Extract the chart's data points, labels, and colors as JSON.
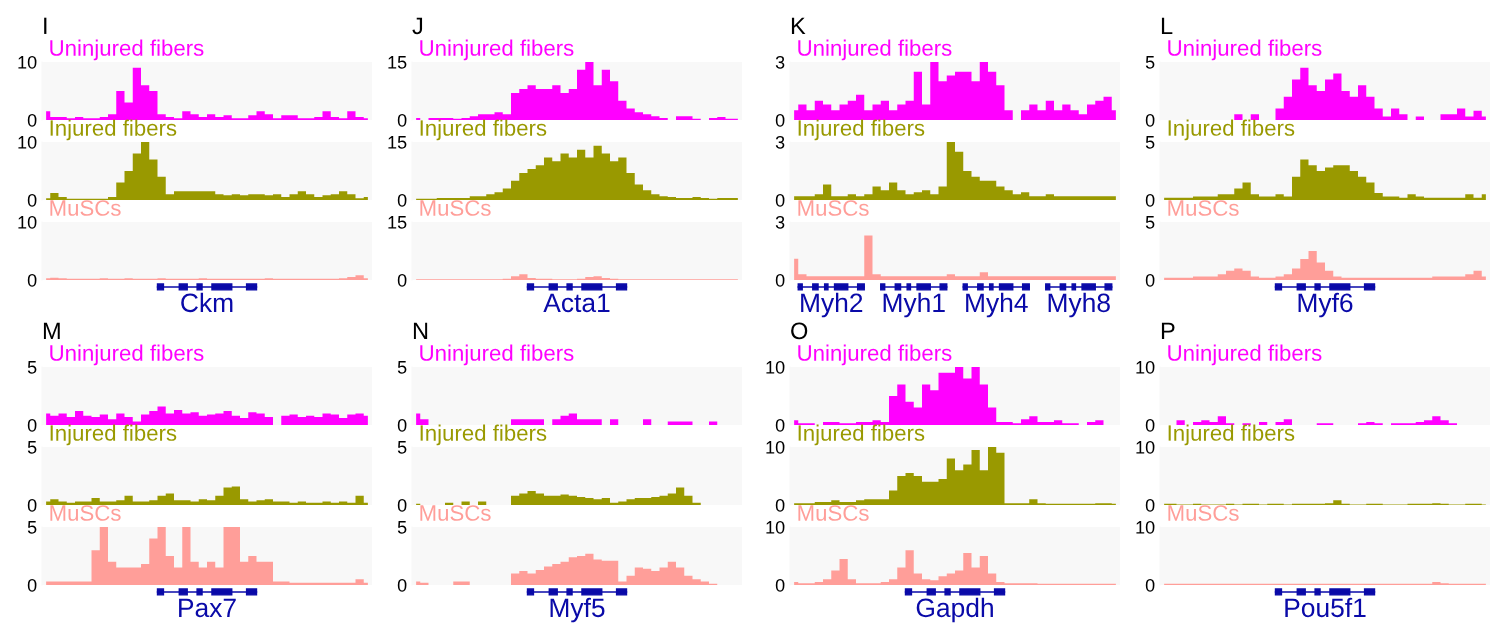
{
  "chart_data": [
    {
      "type": "area",
      "title": "I",
      "categories": [
        null,
        null,
        null,
        null,
        null,
        null,
        null,
        null,
        null,
        null,
        null,
        null,
        null,
        null,
        null,
        null,
        null,
        null,
        null,
        null,
        null,
        null,
        null,
        null,
        null,
        null,
        null,
        null,
        null,
        null,
        null,
        null,
        null,
        null,
        null,
        null,
        null,
        null,
        null,
        null
      ],
      "ylim": [
        0,
        10
      ],
      "yticks": [
        0,
        10
      ],
      "tick_labels": "y",
      "series": [
        {
          "name": "Uninjured fibers",
          "color": "#ff00ff",
          "values": [
            1.5,
            0.5,
            0.5,
            0.3,
            0.5,
            0.3,
            0.3,
            0.5,
            1,
            5,
            3,
            9,
            6,
            5,
            1,
            0.5,
            0.3,
            1.5,
            1,
            0.5,
            1,
            0.5,
            0.8,
            0.3,
            0.3,
            0.8,
            1.5,
            1,
            0.3,
            0.8,
            0.8,
            0.3,
            0.3,
            0.5,
            1.5,
            0.5,
            0.3,
            1.5,
            0.5,
            0.3
          ]
        }
      ]
    },
    {
      "type": "area",
      "categories": [
        null,
        null,
        null,
        null,
        null,
        null,
        null,
        null,
        null,
        null,
        null,
        null,
        null,
        null,
        null,
        null,
        null,
        null,
        null,
        null,
        null,
        null,
        null,
        null,
        null,
        null,
        null,
        null,
        null,
        null,
        null,
        null,
        null,
        null,
        null,
        null,
        null,
        null,
        null,
        null
      ],
      "ylim": [
        0,
        10
      ],
      "yticks": [
        0,
        10
      ],
      "tick_labels": "y",
      "series": [
        {
          "name": "Injured fibers",
          "color": "#999900",
          "values": [
            0.3,
            1.2,
            0.5,
            0.2,
            0.2,
            0.2,
            0.2,
            0.2,
            0.5,
            3,
            5,
            8,
            10,
            7,
            4,
            1,
            1.5,
            1.5,
            1.5,
            1.5,
            1.5,
            1,
            0.8,
            1,
            0.8,
            1,
            1,
            0.8,
            1,
            0.5,
            1,
            1.5,
            1,
            0.5,
            0.8,
            1,
            1.5,
            1,
            0.3,
            0.5
          ]
        }
      ]
    },
    {
      "type": "area",
      "categories": [
        null,
        null,
        null,
        null,
        null,
        null,
        null,
        null,
        null,
        null,
        null,
        null,
        null,
        null,
        null,
        null,
        null,
        null,
        null,
        null,
        null,
        null,
        null,
        null,
        null,
        null,
        null,
        null,
        null,
        null,
        null,
        null,
        null,
        null,
        null,
        null,
        null,
        null,
        null,
        null
      ],
      "ylim": [
        0,
        10
      ],
      "yticks": [
        0,
        10
      ],
      "tick_labels": "y",
      "annotations": [
        "Ckm"
      ],
      "series": [
        {
          "name": "MuSCs",
          "color": "#ff9e99",
          "values": [
            0.3,
            0.4,
            0.3,
            0.2,
            0.2,
            0.2,
            0.2,
            0.3,
            0.2,
            0.2,
            0.3,
            0.2,
            0.2,
            0.2,
            0.3,
            0.2,
            0.2,
            0.2,
            0.2,
            0.3,
            0.2,
            0.2,
            0.2,
            0.2,
            0.2,
            0.2,
            0.2,
            0.3,
            0.2,
            0.2,
            0.2,
            0.2,
            0.2,
            0.2,
            0.2,
            0.2,
            0.3,
            0.5,
            0.8,
            0.3
          ]
        }
      ]
    },
    {
      "type": "area",
      "title": "J",
      "categories": [
        null,
        null,
        null,
        null,
        null,
        null,
        null,
        null,
        null,
        null,
        null,
        null,
        null,
        null,
        null,
        null,
        null,
        null,
        null,
        null,
        null,
        null,
        null,
        null,
        null,
        null,
        null,
        null,
        null,
        null,
        null,
        null,
        null,
        null,
        null,
        null,
        null,
        null,
        null,
        null
      ],
      "ylim": [
        0,
        15
      ],
      "yticks": [
        0,
        15
      ],
      "tick_labels": "y",
      "series": [
        {
          "name": "Uninjured fibers",
          "color": "#ff00ff",
          "values": [
            0.5,
            0,
            0.5,
            0.5,
            0.5,
            0.3,
            0.5,
            1,
            1.5,
            1.5,
            2,
            1.5,
            7,
            8,
            9,
            8,
            8,
            9,
            7,
            8,
            13,
            15,
            9,
            13,
            10,
            5,
            3,
            2,
            1.5,
            1,
            0.5,
            0,
            1,
            1,
            0.3,
            0,
            0.5,
            0.8,
            0.3,
            0.3
          ]
        }
      ]
    },
    {
      "type": "area",
      "categories": [
        null,
        null,
        null,
        null,
        null,
        null,
        null,
        null,
        null,
        null,
        null,
        null,
        null,
        null,
        null,
        null,
        null,
        null,
        null,
        null,
        null,
        null,
        null,
        null,
        null,
        null,
        null,
        null,
        null,
        null,
        null,
        null,
        null,
        null,
        null,
        null,
        null,
        null,
        null,
        null
      ],
      "ylim": [
        0,
        15
      ],
      "yticks": [
        0,
        15
      ],
      "tick_labels": "y",
      "series": [
        {
          "name": "Injured fibers",
          "color": "#999900",
          "values": [
            0.3,
            0.3,
            0.3,
            0.5,
            0.5,
            0.5,
            0.5,
            1,
            1,
            1.5,
            2,
            3,
            5,
            7,
            8,
            9,
            11,
            10,
            12,
            11,
            13,
            11,
            14,
            12,
            10,
            11,
            7,
            4,
            2.5,
            1.5,
            1,
            0.8,
            0.5,
            0.5,
            0.8,
            0.5,
            0.3,
            0.5,
            0.5,
            0.5
          ]
        }
      ]
    },
    {
      "type": "area",
      "categories": [
        null,
        null,
        null,
        null,
        null,
        null,
        null,
        null,
        null,
        null,
        null,
        null,
        null,
        null,
        null,
        null,
        null,
        null,
        null,
        null,
        null,
        null,
        null,
        null,
        null,
        null,
        null,
        null,
        null,
        null,
        null,
        null,
        null,
        null,
        null,
        null,
        null,
        null,
        null,
        null
      ],
      "ylim": [
        0,
        15
      ],
      "yticks": [
        0,
        15
      ],
      "tick_labels": "y",
      "annotations": [
        "Acta1"
      ],
      "series": [
        {
          "name": "MuSCs",
          "color": "#ff9e99",
          "values": [
            0.2,
            0.2,
            0.2,
            0.2,
            0.2,
            0.2,
            0.2,
            0.2,
            0.2,
            0.2,
            0.2,
            0.3,
            1,
            1.5,
            0.5,
            0.3,
            0.3,
            0.2,
            0.2,
            0.2,
            0.3,
            0.8,
            1,
            0.5,
            0.3,
            0.2,
            0.2,
            0.2,
            0.2,
            0.2,
            0.2,
            0.2,
            0.2,
            0.2,
            0.2,
            0.2,
            0.2,
            0.2,
            0.2,
            0.2
          ]
        }
      ]
    },
    {
      "type": "area",
      "title": "K",
      "categories": [
        null,
        null,
        null,
        null,
        null,
        null,
        null,
        null,
        null,
        null,
        null,
        null,
        null,
        null,
        null,
        null,
        null,
        null,
        null,
        null,
        null,
        null,
        null,
        null,
        null,
        null,
        null,
        null,
        null,
        null,
        null,
        null,
        null,
        null,
        null,
        null,
        null,
        null,
        null,
        null
      ],
      "ylim": [
        0,
        3
      ],
      "yticks": [
        0,
        3
      ],
      "tick_labels": "y",
      "series": [
        {
          "name": "Uninjured fibers",
          "color": "#ff00ff",
          "values": [
            0.5,
            0.8,
            0.5,
            1,
            0.8,
            0.5,
            0.8,
            1,
            1.3,
            0.5,
            0.8,
            1,
            0.5,
            0.8,
            1,
            2.5,
            0.8,
            3,
            2,
            2.3,
            2.5,
            2.5,
            2,
            3,
            2.5,
            1.8,
            0.5,
            0,
            0.5,
            0.8,
            0.5,
            1,
            0.5,
            0.8,
            0.5,
            0.3,
            0.8,
            1,
            1.2,
            0.5
          ]
        }
      ]
    },
    {
      "type": "area",
      "categories": [
        null,
        null,
        null,
        null,
        null,
        null,
        null,
        null,
        null,
        null,
        null,
        null,
        null,
        null,
        null,
        null,
        null,
        null,
        null,
        null,
        null,
        null,
        null,
        null,
        null,
        null,
        null,
        null,
        null,
        null,
        null,
        null,
        null,
        null,
        null,
        null,
        null,
        null,
        null,
        null
      ],
      "ylim": [
        0,
        3
      ],
      "yticks": [
        0,
        3
      ],
      "tick_labels": "y",
      "series": [
        {
          "name": "Injured fibers",
          "color": "#999900",
          "values": [
            0.2,
            0.2,
            0.2,
            0.3,
            0.8,
            0.2,
            0.2,
            0.3,
            0.2,
            0.3,
            0.7,
            0.5,
            0.9,
            0.5,
            0.3,
            0.4,
            0.5,
            0.3,
            0.7,
            3,
            2.5,
            1.5,
            1.2,
            1,
            1,
            0.7,
            0.5,
            0.3,
            0.4,
            0.2,
            0.2,
            0.3,
            0.2,
            0.2,
            0.2,
            0.2,
            0.2,
            0.2,
            0.2,
            0.2
          ]
        }
      ]
    },
    {
      "type": "area",
      "categories": [
        null,
        null,
        null,
        null,
        null,
        null,
        null,
        null,
        null,
        null,
        null,
        null,
        null,
        null,
        null,
        null,
        null,
        null,
        null,
        null,
        null,
        null,
        null,
        null,
        null,
        null,
        null,
        null,
        null,
        null,
        null,
        null,
        null,
        null,
        null,
        null,
        null,
        null,
        null,
        null
      ],
      "ylim": [
        0,
        3
      ],
      "yticks": [
        0,
        3
      ],
      "tick_labels": "y",
      "annotations": [
        "Myh2",
        "Myh1",
        "Myh4",
        "Myh8"
      ],
      "series": [
        {
          "name": "MuSCs",
          "color": "#ff9e99",
          "values": [
            1.1,
            0.3,
            0.2,
            0.2,
            0.2,
            0.2,
            0.2,
            0.2,
            0.2,
            2.3,
            0.3,
            0.2,
            0.2,
            0.2,
            0.2,
            0.2,
            0.2,
            0.2,
            0.2,
            0.3,
            0.2,
            0.2,
            0.2,
            0.4,
            0.2,
            0.2,
            0.2,
            0.2,
            0.2,
            0.2,
            0.2,
            0.2,
            0.2,
            0.2,
            0.2,
            0.2,
            0.2,
            0.2,
            0.2,
            0.2
          ]
        }
      ]
    },
    {
      "type": "area",
      "title": "L",
      "categories": [
        null,
        null,
        null,
        null,
        null,
        null,
        null,
        null,
        null,
        null,
        null,
        null,
        null,
        null,
        null,
        null,
        null,
        null,
        null,
        null,
        null,
        null,
        null,
        null,
        null,
        null,
        null,
        null,
        null,
        null,
        null,
        null,
        null,
        null,
        null,
        null,
        null,
        null,
        null,
        null
      ],
      "ylim": [
        0,
        5
      ],
      "yticks": [
        0,
        5
      ],
      "tick_labels": "y",
      "series": [
        {
          "name": "Uninjured fibers",
          "color": "#ff00ff",
          "values": [
            0,
            0,
            0,
            0,
            0,
            0,
            0,
            0,
            0,
            0.5,
            0,
            0.5,
            0,
            0,
            1,
            2,
            3.5,
            4.5,
            3,
            2.5,
            3.5,
            4,
            2.5,
            2,
            3,
            2,
            1,
            0.3,
            1,
            0.5,
            0,
            0.3,
            0,
            0,
            0.5,
            0.5,
            1,
            0.3,
            0.8,
            0.3
          ]
        }
      ]
    },
    {
      "type": "area",
      "categories": [
        null,
        null,
        null,
        null,
        null,
        null,
        null,
        null,
        null,
        null,
        null,
        null,
        null,
        null,
        null,
        null,
        null,
        null,
        null,
        null,
        null,
        null,
        null,
        null,
        null,
        null,
        null,
        null,
        null,
        null,
        null,
        null,
        null,
        null,
        null,
        null,
        null,
        null,
        null,
        null
      ],
      "ylim": [
        0,
        5
      ],
      "yticks": [
        0,
        5
      ],
      "tick_labels": "y",
      "series": [
        {
          "name": "Injured fibers",
          "color": "#999900",
          "values": [
            0.2,
            0.2,
            0.2,
            0.2,
            0.3,
            0.3,
            0.3,
            0.5,
            0.5,
            1,
            1.5,
            0.5,
            0.3,
            0.3,
            0.5,
            0.3,
            2,
            3.5,
            3,
            2.5,
            2.8,
            3,
            3,
            2.5,
            2,
            1.5,
            0.6,
            0.3,
            0.3,
            0.2,
            0.5,
            0.3,
            0.2,
            0.2,
            0.2,
            0.2,
            0.2,
            0.5,
            0.2,
            0.5
          ]
        }
      ]
    },
    {
      "type": "area",
      "categories": [
        null,
        null,
        null,
        null,
        null,
        null,
        null,
        null,
        null,
        null,
        null,
        null,
        null,
        null,
        null,
        null,
        null,
        null,
        null,
        null,
        null,
        null,
        null,
        null,
        null,
        null,
        null,
        null,
        null,
        null,
        null,
        null,
        null,
        null,
        null,
        null,
        null,
        null,
        null,
        null
      ],
      "ylim": [
        0,
        5
      ],
      "yticks": [
        0,
        5
      ],
      "tick_labels": "y",
      "annotations": [
        "Myf6"
      ],
      "series": [
        {
          "name": "MuSCs",
          "color": "#ff9e99",
          "values": [
            0.2,
            0.2,
            0.2,
            0.2,
            0.3,
            0.3,
            0.3,
            0.5,
            0.8,
            1,
            0.8,
            0.3,
            0.2,
            0.2,
            0.3,
            0.5,
            1,
            1.8,
            2.5,
            1.5,
            0.8,
            0.3,
            0.2,
            0.2,
            0.2,
            0.2,
            0.2,
            0.2,
            0.2,
            0.2,
            0.2,
            0.2,
            0.2,
            0.3,
            0.3,
            0.3,
            0.3,
            0.5,
            0.8,
            0.3
          ]
        }
      ]
    },
    {
      "type": "area",
      "title": "M",
      "categories": [
        null,
        null,
        null,
        null,
        null,
        null,
        null,
        null,
        null,
        null,
        null,
        null,
        null,
        null,
        null,
        null,
        null,
        null,
        null,
        null,
        null,
        null,
        null,
        null,
        null,
        null,
        null,
        null,
        null,
        null,
        null,
        null,
        null,
        null,
        null,
        null,
        null,
        null,
        null,
        null
      ],
      "ylim": [
        0,
        5
      ],
      "yticks": [
        0,
        5
      ],
      "tick_labels": "y",
      "series": [
        {
          "name": "Uninjured fibers",
          "color": "#ff00ff",
          "values": [
            1,
            0.8,
            1,
            0.7,
            1.2,
            0.8,
            0.7,
            0.9,
            0.5,
            1,
            0.7,
            0.3,
            0.9,
            1.2,
            1.6,
            1,
            1.3,
            1,
            1.1,
            0.8,
            0.9,
            1,
            1.2,
            0.8,
            0.6,
            1.1,
            1,
            0.7,
            0,
            0.8,
            0.9,
            0.7,
            0.8,
            0.7,
            1,
            0.9,
            0.6,
            0.9,
            1,
            0.8
          ]
        }
      ]
    },
    {
      "type": "area",
      "categories": [
        null,
        null,
        null,
        null,
        null,
        null,
        null,
        null,
        null,
        null,
        null,
        null,
        null,
        null,
        null,
        null,
        null,
        null,
        null,
        null,
        null,
        null,
        null,
        null,
        null,
        null,
        null,
        null,
        null,
        null,
        null,
        null,
        null,
        null,
        null,
        null,
        null,
        null,
        null,
        null
      ],
      "ylim": [
        0,
        5
      ],
      "yticks": [
        0,
        5
      ],
      "tick_labels": "y",
      "series": [
        {
          "name": "Injured fibers",
          "color": "#999900",
          "values": [
            0.3,
            0.5,
            0.3,
            0.2,
            0.3,
            0.3,
            0.6,
            0.3,
            0.3,
            0.4,
            0.8,
            0.3,
            0.3,
            0.4,
            0.8,
            1,
            0.4,
            0.4,
            0.3,
            0.5,
            0.4,
            0.8,
            1.5,
            1.6,
            0.5,
            0.3,
            0.4,
            0.5,
            0.3,
            0.3,
            0.2,
            0.3,
            0.2,
            0.2,
            0.3,
            0.2,
            0.3,
            0.2,
            0.8,
            0.2
          ]
        }
      ]
    },
    {
      "type": "area",
      "categories": [
        null,
        null,
        null,
        null,
        null,
        null,
        null,
        null,
        null,
        null,
        null,
        null,
        null,
        null,
        null,
        null,
        null,
        null,
        null,
        null,
        null,
        null,
        null,
        null,
        null,
        null,
        null,
        null,
        null,
        null,
        null,
        null,
        null,
        null,
        null,
        null,
        null,
        null,
        null,
        null
      ],
      "ylim": [
        0,
        5
      ],
      "yticks": [
        0,
        5
      ],
      "tick_labels": "y",
      "annotations": [
        "Pax7"
      ],
      "series": [
        {
          "name": "MuSCs",
          "color": "#ff9e99",
          "values": [
            0.3,
            0.3,
            0.3,
            0.3,
            0.3,
            0.3,
            3,
            5,
            2,
            1.5,
            1.5,
            1.5,
            1.8,
            4,
            5,
            2.5,
            1.5,
            5,
            2,
            1.5,
            2,
            1.5,
            5,
            5,
            2,
            2.5,
            2,
            2,
            0.3,
            0.3,
            0.2,
            0.2,
            0.2,
            0.2,
            0.2,
            0.2,
            0.2,
            0.2,
            0.5,
            0.2
          ]
        }
      ]
    },
    {
      "type": "area",
      "title": "N",
      "categories": [
        null,
        null,
        null,
        null,
        null,
        null,
        null,
        null,
        null,
        null,
        null,
        null,
        null,
        null,
        null,
        null,
        null,
        null,
        null,
        null,
        null,
        null,
        null,
        null,
        null,
        null,
        null,
        null,
        null,
        null,
        null,
        null,
        null,
        null,
        null,
        null,
        null,
        null,
        null,
        null
      ],
      "ylim": [
        0,
        5
      ],
      "yticks": [
        0,
        5
      ],
      "tick_labels": "y",
      "series": [
        {
          "name": "Uninjured fibers",
          "color": "#ff00ff",
          "values": [
            1,
            0.5,
            0,
            0,
            0,
            0,
            0,
            0,
            0,
            0,
            0,
            0,
            0.5,
            0.5,
            0.5,
            0.5,
            0,
            0.5,
            0.8,
            1,
            0.5,
            0.5,
            0.5,
            0,
            0.5,
            0,
            0,
            0,
            0.5,
            0,
            0,
            0.3,
            0.3,
            0.3,
            0,
            0,
            0.3,
            0,
            0,
            0
          ]
        }
      ]
    },
    {
      "type": "area",
      "categories": [
        null,
        null,
        null,
        null,
        null,
        null,
        null,
        null,
        null,
        null,
        null,
        null,
        null,
        null,
        null,
        null,
        null,
        null,
        null,
        null,
        null,
        null,
        null,
        null,
        null,
        null,
        null,
        null,
        null,
        null,
        null,
        null,
        null,
        null,
        null,
        null,
        null,
        null,
        null,
        null
      ],
      "ylim": [
        0,
        5
      ],
      "yticks": [
        0,
        5
      ],
      "tick_labels": "y",
      "series": [
        {
          "name": "Injured fibers",
          "color": "#999900",
          "values": [
            0.1,
            0,
            0,
            0,
            0.2,
            0,
            0.3,
            0,
            0.3,
            0,
            0,
            0,
            0.8,
            1,
            1.2,
            1,
            0.8,
            0.8,
            0.9,
            0.8,
            0.7,
            0.6,
            0.5,
            0.6,
            0.2,
            0.3,
            0.5,
            0.6,
            0.6,
            0.7,
            0.8,
            1,
            1.5,
            0.8,
            0.2,
            0,
            0,
            0,
            0,
            0
          ]
        }
      ]
    },
    {
      "type": "area",
      "categories": [
        null,
        null,
        null,
        null,
        null,
        null,
        null,
        null,
        null,
        null,
        null,
        null,
        null,
        null,
        null,
        null,
        null,
        null,
        null,
        null,
        null,
        null,
        null,
        null,
        null,
        null,
        null,
        null,
        null,
        null,
        null,
        null,
        null,
        null,
        null,
        null,
        null,
        null,
        null,
        null
      ],
      "ylim": [
        0,
        5
      ],
      "yticks": [
        0,
        5
      ],
      "tick_labels": "y",
      "annotations": [
        "Myf5"
      ],
      "series": [
        {
          "name": "MuSCs",
          "color": "#ff9e99",
          "values": [
            0.3,
            0.2,
            0,
            0,
            0,
            0.3,
            0.3,
            0,
            0,
            0,
            0,
            0,
            1,
            1.2,
            1,
            1.3,
            1.6,
            1.8,
            2,
            2.4,
            2.5,
            2.7,
            2.2,
            2.1,
            2.1,
            0.3,
            0.8,
            1.5,
            1.4,
            1.2,
            1.5,
            2,
            1.5,
            0.8,
            0.5,
            0.3,
            0.1,
            0,
            0,
            0
          ]
        }
      ]
    },
    {
      "type": "area",
      "title": "O",
      "categories": [
        null,
        null,
        null,
        null,
        null,
        null,
        null,
        null,
        null,
        null,
        null,
        null,
        null,
        null,
        null,
        null,
        null,
        null,
        null,
        null,
        null,
        null,
        null,
        null,
        null,
        null,
        null,
        null,
        null,
        null,
        null,
        null,
        null,
        null,
        null,
        null,
        null,
        null,
        null,
        null
      ],
      "ylim": [
        0,
        10
      ],
      "yticks": [
        0,
        10
      ],
      "tick_labels": "y",
      "series": [
        {
          "name": "Uninjured fibers",
          "color": "#ff00ff",
          "values": [
            0.8,
            0.3,
            0.3,
            0,
            0.5,
            0.5,
            0.3,
            0.3,
            0.5,
            0.5,
            0.8,
            0.5,
            5,
            7,
            4,
            3,
            7,
            6,
            9,
            9,
            10,
            8,
            10,
            7,
            3,
            0.5,
            0.5,
            0.3,
            1,
            1.5,
            0.5,
            0.5,
            0.8,
            0.3,
            0.3,
            0,
            0.5,
            0.8,
            0,
            0
          ]
        }
      ]
    },
    {
      "type": "area",
      "categories": [
        null,
        null,
        null,
        null,
        null,
        null,
        null,
        null,
        null,
        null,
        null,
        null,
        null,
        null,
        null,
        null,
        null,
        null,
        null,
        null,
        null,
        null,
        null,
        null,
        null,
        null,
        null,
        null,
        null,
        null,
        null,
        null,
        null,
        null,
        null,
        null,
        null,
        null,
        null,
        null
      ],
      "ylim": [
        0,
        10
      ],
      "yticks": [
        0,
        10
      ],
      "tick_labels": "y",
      "series": [
        {
          "name": "Injured fibers",
          "color": "#999900",
          "values": [
            0.3,
            0.3,
            0.3,
            0.5,
            0.5,
            0.8,
            0.5,
            0.5,
            0.8,
            1,
            1,
            1,
            2.5,
            5,
            5.5,
            5,
            4,
            4,
            4.5,
            8,
            6,
            7,
            9.5,
            6,
            10,
            9,
            0.3,
            0.3,
            0.3,
            1,
            0.3,
            0.2,
            0.2,
            0.2,
            0.2,
            0.2,
            0.2,
            0.3,
            0.3,
            0.2
          ]
        }
      ]
    },
    {
      "type": "area",
      "categories": [
        null,
        null,
        null,
        null,
        null,
        null,
        null,
        null,
        null,
        null,
        null,
        null,
        null,
        null,
        null,
        null,
        null,
        null,
        null,
        null,
        null,
        null,
        null,
        null,
        null,
        null,
        null,
        null,
        null,
        null,
        null,
        null,
        null,
        null,
        null,
        null,
        null,
        null,
        null,
        null
      ],
      "ylim": [
        0,
        10
      ],
      "yticks": [
        0,
        10
      ],
      "tick_labels": "y",
      "annotations": [
        "Gapdh"
      ],
      "series": [
        {
          "name": "MuSCs",
          "color": "#ff9e99",
          "values": [
            0.5,
            0.3,
            0.3,
            0.5,
            1,
            2.5,
            4.5,
            1,
            0.3,
            0.3,
            0.3,
            0.5,
            1,
            3,
            6,
            2,
            1,
            0.8,
            1.5,
            2,
            2.5,
            5.5,
            3,
            5,
            2,
            0.5,
            0.3,
            0.3,
            0.3,
            0.3,
            0.2,
            0.2,
            0.2,
            0.2,
            0.2,
            0.2,
            0.2,
            0.2,
            0.2,
            0.2
          ]
        }
      ]
    },
    {
      "type": "area",
      "title": "P",
      "categories": [
        null,
        null,
        null,
        null,
        null,
        null,
        null,
        null,
        null,
        null,
        null,
        null,
        null,
        null,
        null,
        null,
        null,
        null,
        null,
        null,
        null,
        null,
        null,
        null,
        null,
        null,
        null,
        null,
        null,
        null,
        null,
        null,
        null,
        null,
        null,
        null,
        null,
        null,
        null,
        null
      ],
      "ylim": [
        0,
        10
      ],
      "yticks": [
        0,
        10
      ],
      "tick_labels": "y",
      "series": [
        {
          "name": "Uninjured fibers",
          "color": "#ff00ff",
          "values": [
            0,
            0,
            0.8,
            0,
            0.5,
            0.8,
            0.5,
            1.5,
            0.3,
            0,
            0.3,
            0,
            0.5,
            0,
            0.5,
            1,
            0,
            0,
            0,
            0.3,
            0.3,
            0,
            0,
            0,
            0.3,
            0.5,
            0.3,
            0,
            0.3,
            0.3,
            0.3,
            0.5,
            0.8,
            1.5,
            0.8,
            0.3,
            0,
            0,
            0,
            0
          ]
        }
      ]
    },
    {
      "type": "area",
      "categories": [
        null,
        null,
        null,
        null,
        null,
        null,
        null,
        null,
        null,
        null,
        null,
        null,
        null,
        null,
        null,
        null,
        null,
        null,
        null,
        null,
        null,
        null,
        null,
        null,
        null,
        null,
        null,
        null,
        null,
        null,
        null,
        null,
        null,
        null,
        null,
        null,
        null,
        null,
        null,
        null
      ],
      "ylim": [
        0,
        10
      ],
      "yticks": [
        0,
        10
      ],
      "tick_labels": "y",
      "series": [
        {
          "name": "Injured fibers",
          "color": "#999900",
          "values": [
            0.2,
            0.2,
            0.1,
            0.1,
            0.2,
            0.1,
            0.1,
            0.1,
            0.2,
            0.1,
            0.2,
            0.2,
            0.1,
            0.2,
            0.2,
            0.1,
            0.2,
            0.2,
            0.2,
            0.2,
            0.3,
            0.8,
            0.2,
            0.1,
            0.1,
            0.2,
            0.2,
            0.1,
            0.1,
            0.1,
            0.2,
            0.2,
            0.2,
            0.3,
            0.2,
            0.1,
            0.1,
            0.2,
            0.2,
            0.1
          ]
        }
      ]
    },
    {
      "type": "area",
      "categories": [
        null,
        null,
        null,
        null,
        null,
        null,
        null,
        null,
        null,
        null,
        null,
        null,
        null,
        null,
        null,
        null,
        null,
        null,
        null,
        null,
        null,
        null,
        null,
        null,
        null,
        null,
        null,
        null,
        null,
        null,
        null,
        null,
        null,
        null,
        null,
        null,
        null,
        null,
        null,
        null
      ],
      "ylim": [
        0,
        10
      ],
      "yticks": [
        0,
        10
      ],
      "tick_labels": "y",
      "annotations": [
        "Pou5f1"
      ],
      "series": [
        {
          "name": "MuSCs",
          "color": "#ff9e99",
          "values": [
            0.2,
            0.2,
            0.2,
            0.2,
            0.2,
            0.2,
            0.2,
            0.2,
            0.2,
            0.2,
            0.2,
            0.2,
            0.2,
            0.2,
            0.2,
            0.2,
            0.2,
            0.2,
            0.2,
            0.2,
            0.2,
            0.2,
            0.2,
            0.2,
            0.2,
            0.2,
            0.2,
            0.2,
            0.2,
            0.2,
            0.2,
            0.2,
            0.2,
            0.5,
            0.3,
            0.2,
            0.2,
            0.2,
            0.2,
            0.2
          ]
        }
      ]
    }
  ]
}
